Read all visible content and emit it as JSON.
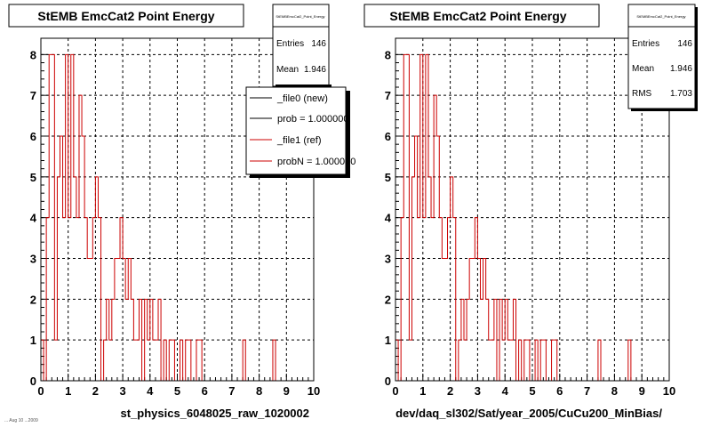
{
  "footer_text": "... Aug 10 ...2009",
  "colors": {
    "ref": "#cc0000",
    "new": "#000000",
    "grid": "#000000",
    "frame": "#000000"
  },
  "panels": [
    {
      "title": "StEMB EmcCat2 Point Energy",
      "xlabel": "st_physics_6048025_raw_1020002",
      "stats": {
        "name": "StEMBEmcCat2_Point_Energy",
        "rows": [
          {
            "k": "Entries",
            "v": "146"
          },
          {
            "k": "Mean",
            "v": "1.946"
          }
        ]
      },
      "legend": {
        "placement": "top-right",
        "entries": [
          {
            "label": "_file0 (new)",
            "color": "#000000"
          },
          {
            "label": "prob = 1.000000",
            "color": "#000000"
          },
          {
            "label": "_file1 (ref)",
            "color": "#cc0000"
          },
          {
            "label": "probN = 1.000000",
            "color": "#cc0000"
          }
        ]
      }
    },
    {
      "title": "StEMB EmcCat2 Point Energy",
      "xlabel": "dev/daq_sl302/Sat/year_2005/CuCu200_MinBias/",
      "stats": {
        "name": "StEMBEmcCat2_Point_Energy",
        "rows": [
          {
            "k": "Entries",
            "v": "146"
          },
          {
            "k": "Mean",
            "v": "1.946"
          },
          {
            "k": "RMS",
            "v": "1.703"
          }
        ]
      }
    }
  ],
  "chart_data": [
    {
      "type": "bar",
      "histogram": true,
      "title": "StEMB EmcCat2 Point Energy",
      "xlabel": "st_physics_6048025_raw_1020002",
      "xlim": [
        0,
        10
      ],
      "ylim": [
        0,
        8.4
      ],
      "xticks": [
        0,
        1,
        2,
        3,
        4,
        5,
        6,
        7,
        8,
        9,
        10
      ],
      "yticks": [
        0,
        1,
        2,
        3,
        4,
        5,
        6,
        7,
        8
      ],
      "grid": true,
      "bin_width": 0.1,
      "series": [
        {
          "name": "_file1 (ref)",
          "color": "#cc0000",
          "values": [
            1,
            0,
            4,
            8,
            8,
            1,
            5,
            6,
            4,
            8,
            4,
            8,
            5,
            4,
            7,
            6,
            4,
            3,
            3,
            4,
            5,
            4,
            0,
            1,
            2,
            1,
            2,
            3,
            3,
            4,
            3,
            2,
            3,
            2,
            1,
            1,
            2,
            0,
            2,
            1,
            2,
            1,
            1,
            2,
            0,
            1,
            0,
            1,
            1,
            0,
            0,
            1,
            0,
            1,
            1,
            0,
            0,
            1,
            1,
            0,
            0,
            0,
            0,
            0,
            0,
            0,
            0,
            0,
            0,
            0,
            0,
            0,
            0,
            0,
            1,
            0,
            0,
            0,
            0,
            0,
            0,
            0,
            0,
            0,
            0,
            1,
            0,
            0,
            0,
            0,
            0,
            0,
            0,
            0,
            0,
            0,
            0,
            0,
            0,
            0
          ]
        }
      ]
    },
    {
      "type": "bar",
      "histogram": true,
      "title": "StEMB EmcCat2 Point Energy",
      "xlabel": "dev/daq_sl302/Sat/year_2005/CuCu200_MinBias/",
      "xlim": [
        0,
        10
      ],
      "ylim": [
        0,
        8.4
      ],
      "xticks": [
        0,
        1,
        2,
        3,
        4,
        5,
        6,
        7,
        8,
        9,
        10
      ],
      "yticks": [
        0,
        1,
        2,
        3,
        4,
        5,
        6,
        7,
        8
      ],
      "grid": true,
      "bin_width": 0.1,
      "series": [
        {
          "name": "_file1 (ref)",
          "color": "#cc0000",
          "values": [
            1,
            0,
            4,
            8,
            8,
            1,
            5,
            6,
            4,
            8,
            4,
            8,
            5,
            4,
            7,
            6,
            4,
            3,
            3,
            4,
            5,
            4,
            0,
            1,
            2,
            1,
            2,
            3,
            3,
            4,
            3,
            2,
            3,
            2,
            1,
            1,
            2,
            0,
            2,
            1,
            2,
            1,
            1,
            2,
            0,
            1,
            0,
            1,
            1,
            0,
            0,
            1,
            0,
            1,
            1,
            0,
            0,
            1,
            1,
            0,
            0,
            0,
            0,
            0,
            0,
            0,
            0,
            0,
            0,
            0,
            0,
            0,
            0,
            0,
            1,
            0,
            0,
            0,
            0,
            0,
            0,
            0,
            0,
            0,
            0,
            1,
            0,
            0,
            0,
            0,
            0,
            0,
            0,
            0,
            0,
            0,
            0,
            0,
            0,
            0
          ]
        }
      ]
    }
  ]
}
